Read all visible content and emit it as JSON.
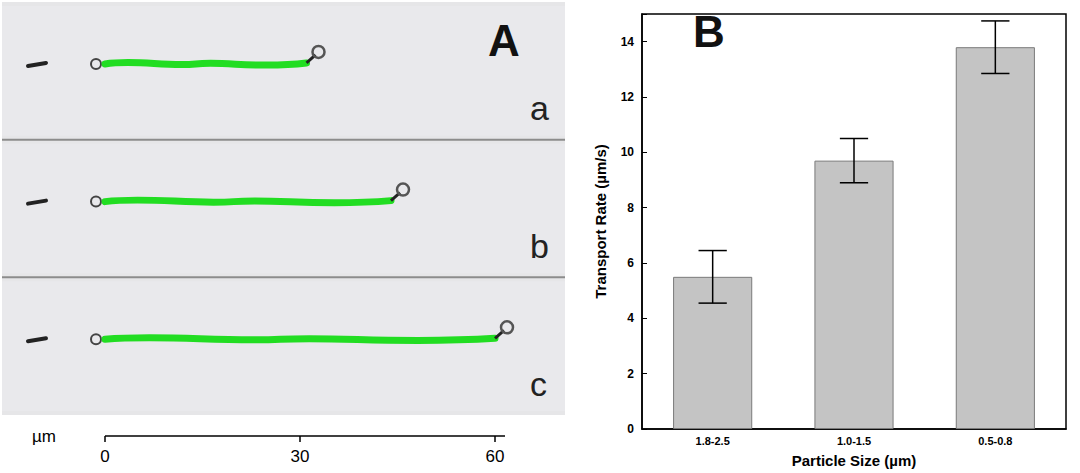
{
  "panel_A": {
    "letter": "A",
    "strips": [
      {
        "label": "a",
        "track_um": [
          0,
          31
        ]
      },
      {
        "label": "b",
        "track_um": [
          0,
          44
        ]
      },
      {
        "label": "c",
        "track_um": [
          0,
          60
        ]
      }
    ],
    "scale": {
      "unit": "µm",
      "ticks": [
        0,
        30,
        60
      ]
    }
  },
  "chart_data": {
    "type": "bar",
    "annotations": [
      "B"
    ],
    "x_label": "Particle Size (µm)",
    "y_label": "Transport Rate (µm/s)",
    "categories": [
      "1.8-2.5",
      "1.0-1.5",
      "0.5-0.8"
    ],
    "values": [
      5.5,
      9.7,
      13.8
    ],
    "errors": [
      0.95,
      0.8,
      0.95
    ],
    "color": "#c4c4c4",
    "ylim": [
      0,
      15
    ],
    "yticks": [
      0,
      2,
      4,
      6,
      8,
      10,
      12,
      14
    ],
    "grid": false
  }
}
